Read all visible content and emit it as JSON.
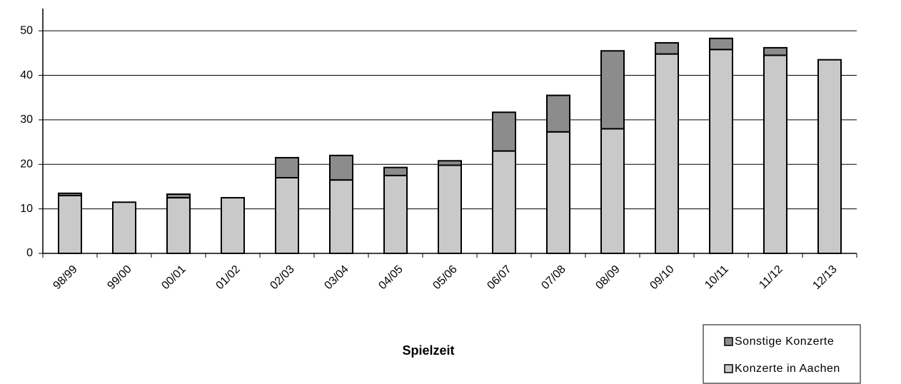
{
  "chart_data": {
    "type": "stacked-bar",
    "x_label": "Spielzeit",
    "categories": [
      "98/99",
      "99/00",
      "00/01",
      "01/02",
      "02/03",
      "03/04",
      "04/05",
      "05/06",
      "06/07",
      "07/08",
      "08/09",
      "09/10",
      "10/11",
      "11/12",
      "12/13"
    ],
    "series": [
      {
        "name": "Konzerte in Aachen",
        "color": "#c9c9c9",
        "values": [
          13,
          11.5,
          12.5,
          12.5,
          17,
          16.5,
          17.5,
          19.8,
          23,
          27.3,
          28,
          44.8,
          45.8,
          44.5,
          43.5
        ]
      },
      {
        "name": "Sonstige Konzerte",
        "color": "#8c8c8c",
        "values": [
          0.5,
          0,
          0.8,
          0,
          4.5,
          5.5,
          1.8,
          1,
          8.7,
          8.2,
          17.5,
          2.5,
          2.5,
          1.7,
          0
        ]
      }
    ],
    "ylim": [
      0,
      55
    ],
    "yticks": [
      0,
      10,
      20,
      30,
      40,
      50
    ],
    "grid": true,
    "legend": "bottom-right"
  }
}
